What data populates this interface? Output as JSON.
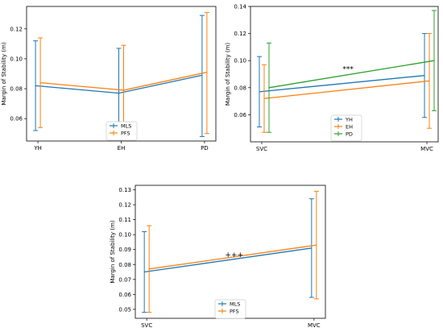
{
  "chart_data": [
    {
      "type": "line",
      "error_bars": true,
      "categories": [
        "YH",
        "EH",
        "PD"
      ],
      "ylabel": "Margin of Stability (m)",
      "ylim": [
        0.045,
        0.135
      ],
      "yticks": [
        "0.06",
        "0.08",
        "0.10",
        "0.12"
      ],
      "legend": "bottom-center",
      "annotation": "",
      "series": [
        {
          "name": "MLS",
          "color": "#1f77b4",
          "values": [
            0.082,
            0.077,
            0.089
          ],
          "err_low": [
            0.052,
            0.047,
            0.048
          ],
          "err_high": [
            0.112,
            0.107,
            0.129
          ]
        },
        {
          "name": "PFS",
          "color": "#ff7f0e",
          "values": [
            0.084,
            0.079,
            0.091
          ],
          "err_low": [
            0.054,
            0.049,
            0.05
          ],
          "err_high": [
            0.114,
            0.109,
            0.131
          ]
        }
      ]
    },
    {
      "type": "line",
      "error_bars": true,
      "categories": [
        "SVC",
        "MVC"
      ],
      "ylabel": "Margin of Stability (m)",
      "ylim": [
        0.04,
        0.14
      ],
      "yticks": [
        "0.06",
        "0.08",
        "0.10",
        "0.12",
        "0.14"
      ],
      "legend": "bottom-center",
      "annotation": "***",
      "annotation_pos": [
        0.52,
        0.092
      ],
      "series": [
        {
          "name": "YH",
          "color": "#1f77b4",
          "values": [
            0.077,
            0.089
          ],
          "err_low": [
            0.051,
            0.058
          ],
          "err_high": [
            0.103,
            0.12
          ]
        },
        {
          "name": "EH",
          "color": "#ff7f0e",
          "values": [
            0.072,
            0.085
          ],
          "err_low": [
            0.047,
            0.05
          ],
          "err_high": [
            0.097,
            0.12
          ]
        },
        {
          "name": "PD",
          "color": "#2ca02c",
          "values": [
            0.08,
            0.1
          ],
          "err_low": [
            0.047,
            0.063
          ],
          "err_high": [
            0.113,
            0.137
          ]
        }
      ]
    },
    {
      "type": "line",
      "error_bars": true,
      "categories": [
        "SVC",
        "MVC"
      ],
      "ylabel": "Margin of Stability (m)",
      "ylim": [
        0.044,
        0.133
      ],
      "yticks": [
        "0.05",
        "0.06",
        "0.07",
        "0.08",
        "0.09",
        "0.10",
        "0.11",
        "0.12",
        "0.13"
      ],
      "legend": "bottom-center",
      "annotation": "+++",
      "annotation_pos": [
        0.52,
        0.085
      ],
      "series": [
        {
          "name": "MLS",
          "color": "#1f77b4",
          "values": [
            0.075,
            0.091
          ],
          "err_low": [
            0.048,
            0.058
          ],
          "err_high": [
            0.102,
            0.124
          ]
        },
        {
          "name": "PFS",
          "color": "#ff7f0e",
          "values": [
            0.077,
            0.093
          ],
          "err_low": [
            0.048,
            0.057
          ],
          "err_high": [
            0.106,
            0.129
          ]
        }
      ]
    }
  ]
}
